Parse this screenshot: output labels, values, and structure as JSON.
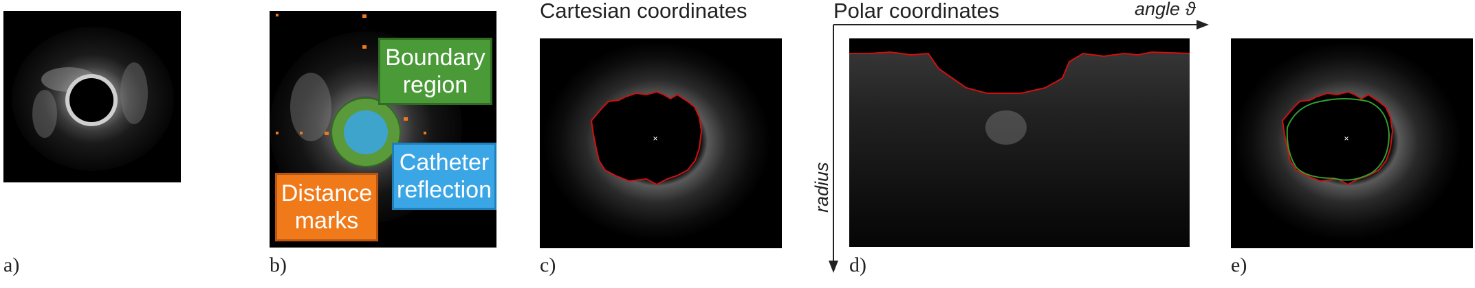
{
  "panels": {
    "a": {
      "label": "a)"
    },
    "b": {
      "label": "b)",
      "callouts": {
        "boundary": [
          "Boundary",
          "region"
        ],
        "catheter": [
          "Catheter",
          "reflection"
        ],
        "distance": [
          "Distance",
          "marks"
        ]
      }
    },
    "c": {
      "label": "c)",
      "title": "Cartesian coordinates"
    },
    "d": {
      "label": "d)",
      "title": "Polar coordinates",
      "x_axis": "angle ϑ",
      "y_axis": "radius"
    },
    "e": {
      "label": "e)"
    }
  },
  "colors": {
    "segmentation": "#d01010",
    "smoothed": "#2fa02f",
    "boundary": "#4a9a38",
    "catheter": "#3aa6e6",
    "distance": "#f07a1a"
  }
}
